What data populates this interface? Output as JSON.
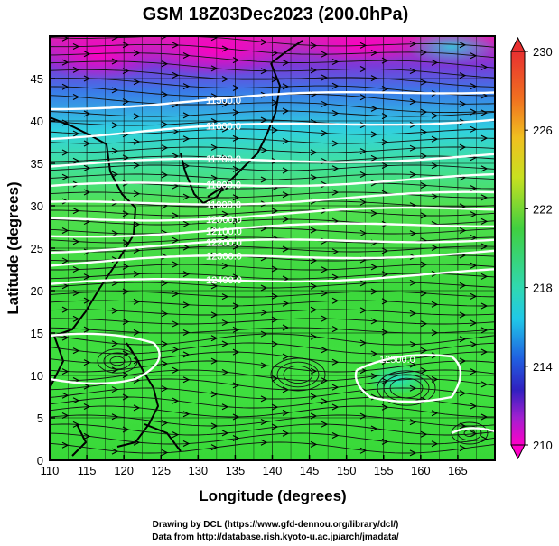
{
  "title": "GSM 18Z03Dec2023 (200.0hPa)",
  "xaxis": {
    "label": "Longitude (degrees)",
    "ticks": [
      "110",
      "115",
      "120",
      "125",
      "130",
      "135",
      "140",
      "145",
      "150",
      "155",
      "160",
      "165"
    ],
    "range": [
      110,
      170
    ]
  },
  "yaxis": {
    "label": "Latitude  (degrees)",
    "ticks": [
      "0",
      "5",
      "10",
      "15",
      "20",
      "25",
      "30",
      "35",
      "40",
      "45"
    ],
    "range": [
      0,
      50
    ]
  },
  "colorbar": {
    "labels": [
      "230",
      "226",
      "222",
      "218",
      "214",
      "210"
    ],
    "range": [
      210,
      230
    ],
    "unit_note": ""
  },
  "contours": {
    "labels": [
      "11500.0",
      "11600.0",
      "11700.0",
      "11800.0",
      "11900.0",
      "12000.0",
      "12100.0",
      "12200.0",
      "12300.0",
      "12400.0",
      "12500.0"
    ]
  },
  "credits": {
    "line1": "Drawing by DCL (https://www.gfd-dennou.org/library/dcl/)",
    "line2": "Data from http://database.rish.kyoto-u.ac.jp/arch/jmadata/"
  },
  "colors": {
    "high": "#e83030",
    "mid_high": "#f0c020",
    "mid": "#3ad43a",
    "mid_low": "#20d8d8",
    "low": "#2030d0",
    "lowest": "#ff00c8"
  }
}
